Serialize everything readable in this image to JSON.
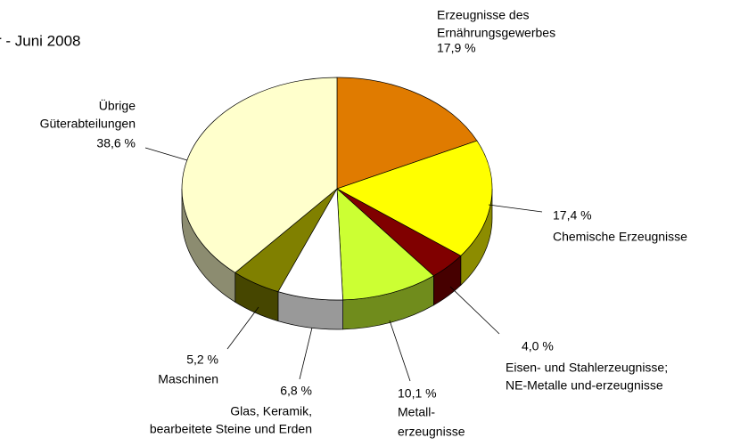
{
  "chart_data": {
    "type": "pie",
    "title": "r - Juni 2008",
    "categories": [
      [
        "Erzeugnisse des",
        "Ernährungsgewerbes"
      ],
      [
        "Chemische Erzeugnisse"
      ],
      [
        "Eisen- und Stahlerzeugnisse;",
        "NE-Metalle und-erzeugnisse"
      ],
      [
        "Metall-",
        "erzeugnisse"
      ],
      [
        "Glas, Keramik,",
        "bearbeitete Steine und Erden"
      ],
      [
        "Maschinen"
      ],
      [
        "Übrige",
        "Güterabteilungen"
      ]
    ],
    "values": [
      17.9,
      17.4,
      4.0,
      10.1,
      6.8,
      5.2,
      38.6
    ],
    "value_labels": [
      "17,9 %",
      "17,4 %",
      "4,0 %",
      "10,1 %",
      "6,8 %",
      "5,2 %",
      "38,6 %"
    ],
    "colors": [
      "#e07b00",
      "#ffff00",
      "#800000",
      "#ccff33",
      "#ffffff",
      "#808000",
      "#ffffcc"
    ]
  }
}
